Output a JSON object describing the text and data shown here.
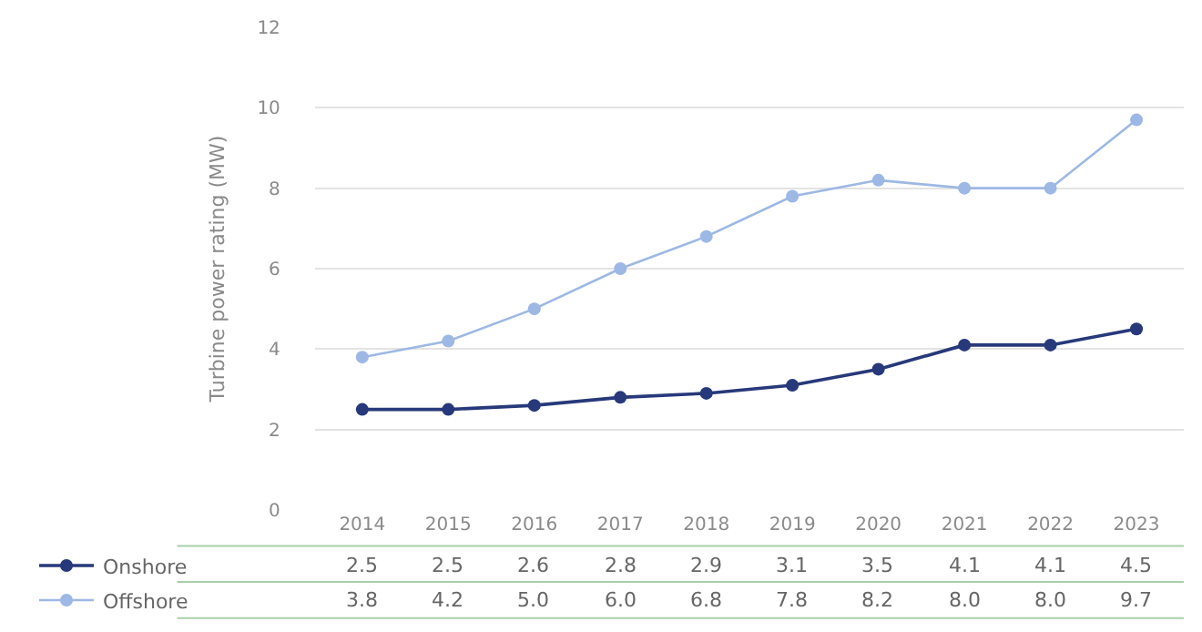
{
  "chart_data": {
    "type": "line",
    "ylabel": "Turbine power rating (MW)",
    "categories": [
      "2014",
      "2015",
      "2016",
      "2017",
      "2018",
      "2019",
      "2020",
      "2021",
      "2022",
      "2023"
    ],
    "series": [
      {
        "name": "Onshore",
        "color": "#27397a",
        "values": [
          2.5,
          2.5,
          2.6,
          2.8,
          2.9,
          3.1,
          3.5,
          4.1,
          4.1,
          4.5
        ],
        "value_labels": [
          "2.5",
          "2.5",
          "2.6",
          "2.8",
          "2.9",
          "3.1",
          "3.5",
          "4.1",
          "4.1",
          "4.5"
        ]
      },
      {
        "name": "Offshore",
        "color": "#9db8e4",
        "values": [
          3.8,
          4.2,
          5.0,
          6.0,
          6.8,
          7.8,
          8.2,
          8.0,
          8.0,
          9.7
        ],
        "value_labels": [
          "3.8",
          "4.2",
          "5.0",
          "6.0",
          "6.8",
          "7.8",
          "8.2",
          "8.0",
          "8.0",
          "9.7"
        ]
      }
    ],
    "ylim": [
      0,
      12
    ],
    "yticks": [
      0,
      2,
      4,
      6,
      8,
      10,
      12
    ],
    "grid": "y",
    "legend": "bottom left",
    "marker": "circle",
    "line_style": "solid"
  }
}
